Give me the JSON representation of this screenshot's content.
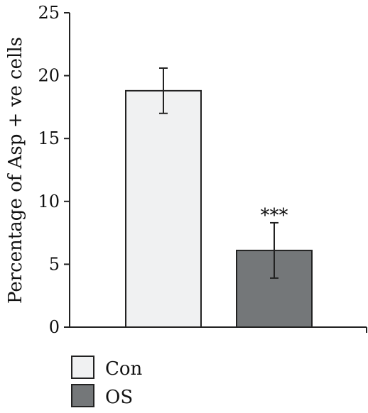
{
  "chart_data": {
    "type": "bar",
    "title": "",
    "xlabel": "",
    "ylabel": "Percentage of Asp + ve cells",
    "ylim": [
      0,
      25
    ],
    "yticks": [
      0,
      5,
      10,
      15,
      20,
      25
    ],
    "categories": [
      "Con",
      "OS"
    ],
    "values": [
      18.8,
      6.1
    ],
    "errors": [
      1.8,
      2.2
    ],
    "colors": [
      "#f0f1f2",
      "#747779"
    ],
    "annotations": [
      {
        "category": "OS",
        "text": "***"
      }
    ],
    "legend": {
      "placement": "bottom-left",
      "entries": [
        {
          "label": "Con",
          "color": "#f0f1f2"
        },
        {
          "label": "OS",
          "color": "#747779"
        }
      ]
    },
    "grid": false
  }
}
